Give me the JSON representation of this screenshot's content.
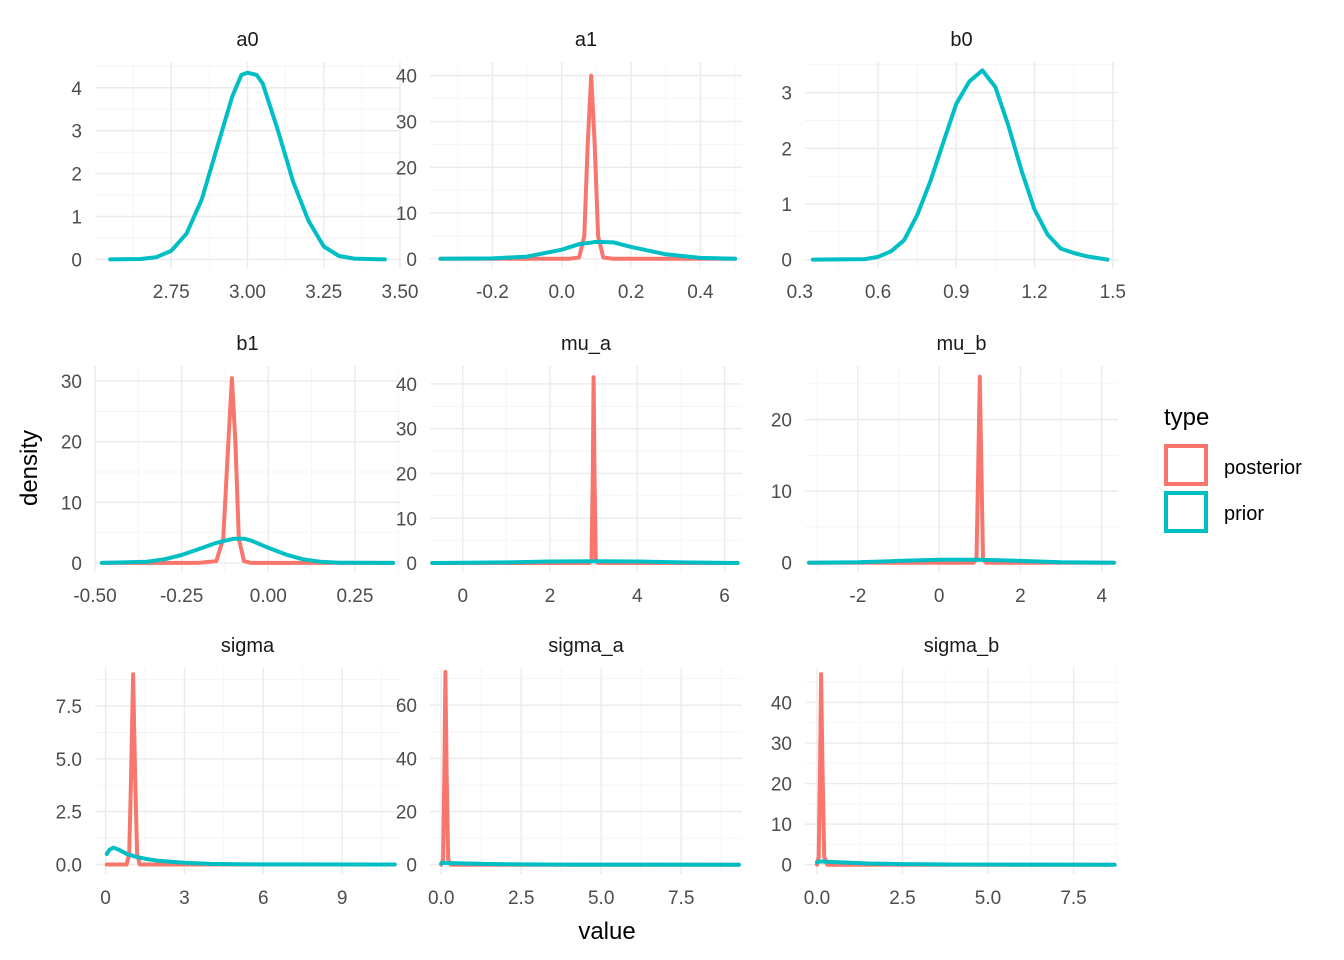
{
  "chart_data": {
    "type": "line",
    "xlabel": "value",
    "ylabel": "density",
    "legend": {
      "title": "type",
      "placement": "right",
      "entries": [
        {
          "label": "posterior",
          "color": "#F8766D"
        },
        {
          "label": "prior",
          "color": "#00BFC4"
        }
      ]
    },
    "grid": true,
    "panels": [
      {
        "title": "a0",
        "xlim": [
          2.5,
          3.5
        ],
        "ylim": [
          -0.2,
          4.6
        ],
        "xticks": [
          2.75,
          3.0,
          3.25,
          3.5
        ],
        "xtick_labels": [
          "2.75",
          "3.00",
          "3.25",
          "3.50"
        ],
        "yticks": [
          0,
          1,
          2,
          3,
          4
        ],
        "ytick_labels": [
          "0",
          "1",
          "2",
          "3",
          "4"
        ],
        "series": [
          {
            "name": "prior",
            "color": "#00BFC4",
            "x": [
              2.55,
              2.65,
              2.7,
              2.75,
              2.8,
              2.85,
              2.9,
              2.95,
              2.98,
              3.0,
              3.03,
              3.05,
              3.1,
              3.15,
              3.2,
              3.25,
              3.3,
              3.35,
              3.45
            ],
            "y": [
              0,
              0.01,
              0.05,
              0.2,
              0.6,
              1.4,
              2.6,
              3.8,
              4.3,
              4.35,
              4.3,
              4.1,
              3.0,
              1.8,
              0.9,
              0.3,
              0.08,
              0.02,
              0
            ]
          }
        ]
      },
      {
        "title": "a1",
        "xlim": [
          -0.38,
          0.52
        ],
        "ylim": [
          -2,
          43
        ],
        "xticks": [
          -0.2,
          0.0,
          0.2,
          0.4
        ],
        "xtick_labels": [
          "-0.2",
          "0.0",
          "0.2",
          "0.4"
        ],
        "yticks": [
          0,
          10,
          20,
          30,
          40
        ],
        "ytick_labels": [
          "0",
          "10",
          "20",
          "30",
          "40"
        ],
        "series": [
          {
            "name": "posterior",
            "color": "#F8766D",
            "x": [
              -0.35,
              0.02,
              0.05,
              0.065,
              0.075,
              0.085,
              0.095,
              0.105,
              0.12,
              0.15,
              0.5
            ],
            "y": [
              0,
              0,
              0.3,
              5,
              25,
              40,
              25,
              5,
              0.3,
              0,
              0
            ]
          },
          {
            "name": "prior",
            "color": "#00BFC4",
            "x": [
              -0.35,
              -0.2,
              -0.1,
              0.0,
              0.05,
              0.1,
              0.15,
              0.2,
              0.3,
              0.4,
              0.5
            ],
            "y": [
              0,
              0.1,
              0.5,
              2.0,
              3.2,
              3.7,
              3.6,
              2.6,
              1.0,
              0.2,
              0
            ]
          }
        ]
      },
      {
        "title": "b0",
        "xlim": [
          0.32,
          1.52
        ],
        "ylim": [
          -0.15,
          3.55
        ],
        "xticks": [
          0.3,
          0.6,
          0.9,
          1.2,
          1.5
        ],
        "xtick_labels": [
          "0.3",
          "0.6",
          "0.9",
          "1.2",
          "1.5"
        ],
        "yticks": [
          0,
          1,
          2,
          3
        ],
        "ytick_labels": [
          "0",
          "1",
          "2",
          "3"
        ],
        "series": [
          {
            "name": "prior",
            "color": "#00BFC4",
            "x": [
              0.35,
              0.55,
              0.6,
              0.65,
              0.7,
              0.75,
              0.8,
              0.85,
              0.9,
              0.95,
              1.0,
              1.05,
              1.1,
              1.15,
              1.2,
              1.25,
              1.3,
              1.35,
              1.4,
              1.48
            ],
            "y": [
              0,
              0.01,
              0.05,
              0.15,
              0.35,
              0.8,
              1.4,
              2.1,
              2.8,
              3.2,
              3.4,
              3.1,
              2.4,
              1.6,
              0.9,
              0.45,
              0.2,
              0.12,
              0.06,
              0
            ]
          }
        ]
      },
      {
        "title": "b1",
        "xlim": [
          -0.5,
          0.38
        ],
        "ylim": [
          -1.5,
          32.5
        ],
        "xticks": [
          -0.5,
          -0.25,
          0.0,
          0.25
        ],
        "xtick_labels": [
          "-0.50",
          "-0.25",
          "0.00",
          "0.25"
        ],
        "yticks": [
          0,
          10,
          20,
          30
        ],
        "ytick_labels": [
          "0",
          "10",
          "20",
          "30"
        ],
        "series": [
          {
            "name": "posterior",
            "color": "#F8766D",
            "x": [
              -0.48,
              -0.2,
              -0.15,
              -0.13,
              -0.115,
              -0.105,
              -0.095,
              -0.085,
              -0.07,
              -0.05,
              0.36
            ],
            "y": [
              0,
              0,
              0.3,
              4,
              20,
              30.5,
              20,
              4,
              0.3,
              0,
              0
            ]
          },
          {
            "name": "prior",
            "color": "#00BFC4",
            "x": [
              -0.48,
              -0.35,
              -0.3,
              -0.25,
              -0.2,
              -0.15,
              -0.1,
              -0.07,
              -0.05,
              0.0,
              0.05,
              0.1,
              0.15,
              0.2,
              0.36
            ],
            "y": [
              0,
              0.2,
              0.6,
              1.3,
              2.3,
              3.3,
              4.0,
              4.0,
              3.7,
              2.5,
              1.4,
              0.6,
              0.2,
              0.05,
              0
            ]
          }
        ]
      },
      {
        "title": "mu_a",
        "xlim": [
          -0.75,
          6.4
        ],
        "ylim": [
          -2,
          44
        ],
        "xticks": [
          0,
          2,
          4,
          6
        ],
        "xtick_labels": [
          "0",
          "2",
          "4",
          "6"
        ],
        "yticks": [
          0,
          10,
          20,
          30,
          40
        ],
        "ytick_labels": [
          "0",
          "10",
          "20",
          "30",
          "40"
        ],
        "series": [
          {
            "name": "posterior",
            "color": "#F8766D",
            "x": [
              -0.7,
              2.9,
              2.95,
              2.98,
              3.0,
              3.02,
              3.05,
              3.1,
              6.3
            ],
            "y": [
              0,
              0,
              0.5,
              20,
              41.5,
              20,
              0.5,
              0,
              0
            ]
          },
          {
            "name": "prior",
            "color": "#00BFC4",
            "x": [
              -0.7,
              1.0,
              2.0,
              3.0,
              4.0,
              5.0,
              6.3
            ],
            "y": [
              0,
              0.15,
              0.35,
              0.4,
              0.35,
              0.15,
              0
            ]
          }
        ]
      },
      {
        "title": "mu_b",
        "xlim": [
          -3.3,
          4.4
        ],
        "ylim": [
          -1.3,
          27.5
        ],
        "xticks": [
          -2,
          0,
          2,
          4
        ],
        "xtick_labels": [
          "-2",
          "0",
          "2",
          "4"
        ],
        "yticks": [
          0,
          10,
          20
        ],
        "ytick_labels": [
          "0",
          "10",
          "20"
        ],
        "series": [
          {
            "name": "posterior",
            "color": "#F8766D",
            "x": [
              -3.2,
              0.85,
              0.92,
              0.96,
              1.0,
              1.04,
              1.08,
              1.15,
              4.3
            ],
            "y": [
              0,
              0,
              0.5,
              13,
              26,
              13,
              0.5,
              0,
              0
            ]
          },
          {
            "name": "prior",
            "color": "#00BFC4",
            "x": [
              -3.2,
              -2.0,
              -1.0,
              0.0,
              1.0,
              2.0,
              3.0,
              4.3
            ],
            "y": [
              0,
              0.05,
              0.25,
              0.4,
              0.4,
              0.25,
              0.05,
              0
            ]
          }
        ]
      },
      {
        "title": "sigma",
        "xlim": [
          -0.4,
          11.2
        ],
        "ylim": [
          -0.45,
          9.3
        ],
        "xticks": [
          0,
          3,
          6,
          9
        ],
        "xtick_labels": [
          "0",
          "3",
          "6",
          "9"
        ],
        "yticks": [
          0,
          2.5,
          5.0,
          7.5
        ],
        "ytick_labels": [
          "0.0",
          "2.5",
          "5.0",
          "7.5"
        ],
        "series": [
          {
            "name": "posterior",
            "color": "#F8766D",
            "x": [
              0.05,
              0.8,
              0.9,
              0.97,
              1.05,
              1.13,
              1.2,
              1.3,
              11.0
            ],
            "y": [
              0,
              0,
              0.5,
              4,
              9.0,
              4,
              0.5,
              0,
              0
            ]
          },
          {
            "name": "prior",
            "color": "#00BFC4",
            "x": [
              0.05,
              0.15,
              0.3,
              0.5,
              0.8,
              1.2,
              1.6,
              2.0,
              3.0,
              4.0,
              5.0,
              11.0
            ],
            "y": [
              0.5,
              0.7,
              0.8,
              0.7,
              0.5,
              0.35,
              0.25,
              0.18,
              0.08,
              0.03,
              0.01,
              0
            ]
          }
        ]
      },
      {
        "title": "sigma_a",
        "xlim": [
          -0.35,
          9.4
        ],
        "ylim": [
          -3.5,
          74
        ],
        "xticks": [
          0,
          2.5,
          5.0,
          7.5
        ],
        "xtick_labels": [
          "0.0",
          "2.5",
          "5.0",
          "7.5"
        ],
        "yticks": [
          0,
          20,
          40,
          60
        ],
        "ytick_labels": [
          "0",
          "20",
          "40",
          "60"
        ],
        "series": [
          {
            "name": "posterior",
            "color": "#F8766D",
            "x": [
              0.0,
              0.06,
              0.1,
              0.13,
              0.17,
              0.22,
              0.3,
              9.3
            ],
            "y": [
              0,
              2,
              35,
              72.5,
              35,
              2,
              0,
              0
            ]
          },
          {
            "name": "prior",
            "color": "#00BFC4",
            "x": [
              0.0,
              0.1,
              0.3,
              0.6,
              1.0,
              1.5,
              2.5,
              4.0,
              9.3
            ],
            "y": [
              0.5,
              0.7,
              0.6,
              0.5,
              0.4,
              0.25,
              0.12,
              0.03,
              0
            ]
          }
        ]
      },
      {
        "title": "sigma_b",
        "xlim": [
          -0.35,
          8.8
        ],
        "ylim": [
          -2.3,
          48.5
        ],
        "xticks": [
          0,
          2.5,
          5.0,
          7.5
        ],
        "xtick_labels": [
          "0.0",
          "2.5",
          "5.0",
          "7.5"
        ],
        "yticks": [
          0,
          10,
          20,
          30,
          40
        ],
        "ytick_labels": [
          "0",
          "10",
          "20",
          "30",
          "40"
        ],
        "series": [
          {
            "name": "posterior",
            "color": "#F8766D",
            "x": [
              0.0,
              0.05,
              0.09,
              0.12,
              0.16,
              0.21,
              0.3,
              8.7
            ],
            "y": [
              0,
              2,
              25,
              47,
              25,
              2,
              0,
              0
            ]
          },
          {
            "name": "prior",
            "color": "#00BFC4",
            "x": [
              0.0,
              0.1,
              0.3,
              0.6,
              1.0,
              1.5,
              2.5,
              4.0,
              8.7
            ],
            "y": [
              0.6,
              0.8,
              0.7,
              0.6,
              0.45,
              0.3,
              0.15,
              0.04,
              0
            ]
          }
        ]
      }
    ]
  }
}
